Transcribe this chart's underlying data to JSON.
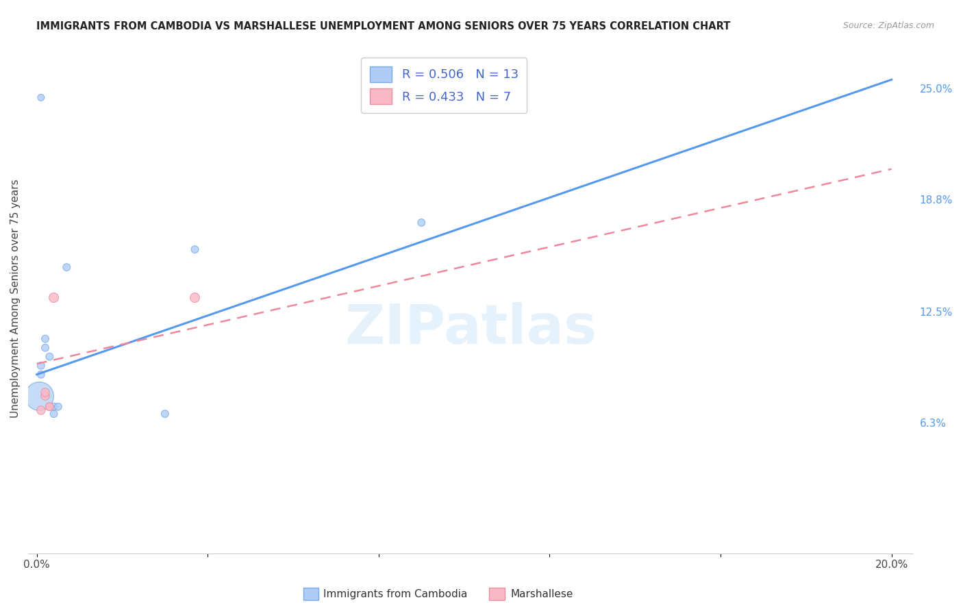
{
  "title": "IMMIGRANTS FROM CAMBODIA VS MARSHALLESE UNEMPLOYMENT AMONG SENIORS OVER 75 YEARS CORRELATION CHART",
  "source": "Source: ZipAtlas.com",
  "ylabel": "Unemployment Among Seniors over 75 years",
  "y_tick_labels_right": [
    "6.3%",
    "12.5%",
    "18.8%",
    "25.0%"
  ],
  "y_ticks_right": [
    0.063,
    0.125,
    0.188,
    0.25
  ],
  "xlim": [
    -0.002,
    0.205
  ],
  "ylim": [
    -0.01,
    0.275
  ],
  "R_cambodia": 0.506,
  "N_cambodia": 13,
  "R_marshallese": 0.433,
  "N_marshallese": 7,
  "cambodia_color": "#aeccf5",
  "cambodia_edge": "#7aaae8",
  "marshallese_color": "#f9b8c5",
  "marshallese_edge": "#e890a0",
  "trend_cambodia_color": "#5599ee",
  "trend_marshallese_color": "#ee8899",
  "trend_cambodia_x0": 0.0,
  "trend_cambodia_y0": 0.09,
  "trend_cambodia_x1": 0.2,
  "trend_cambodia_y1": 0.255,
  "trend_marshallese_x0": 0.0,
  "trend_marshallese_y0": 0.096,
  "trend_marshallese_x1": 0.2,
  "trend_marshallese_y1": 0.205,
  "watermark": "ZIPatlas",
  "background_color": "#ffffff",
  "grid_color": "#dddddd",
  "scatter_cambodia_x": [
    0.001,
    0.001,
    0.002,
    0.002,
    0.003,
    0.004,
    0.004,
    0.005,
    0.007,
    0.03,
    0.037,
    0.09,
    0.001
  ],
  "scatter_cambodia_y": [
    0.095,
    0.09,
    0.11,
    0.105,
    0.1,
    0.068,
    0.072,
    0.072,
    0.15,
    0.068,
    0.16,
    0.175,
    0.245
  ],
  "scatter_cambodia_size": [
    60,
    60,
    60,
    60,
    60,
    60,
    60,
    60,
    60,
    60,
    60,
    60,
    50
  ],
  "scatter_cambodia_big_x": [
    0.0005
  ],
  "scatter_cambodia_big_y": [
    0.078
  ],
  "scatter_cambodia_big_size": [
    900
  ],
  "scatter_marshallese_x": [
    0.001,
    0.002,
    0.002,
    0.003,
    0.003,
    0.004,
    0.037
  ],
  "scatter_marshallese_y": [
    0.07,
    0.078,
    0.08,
    0.072,
    0.072,
    0.133,
    0.133
  ],
  "scatter_marshallese_size": [
    80,
    80,
    80,
    70,
    70,
    100,
    100
  ],
  "legend_label_cambodia": "Immigrants from Cambodia",
  "legend_label_marshallese": "Marshallese"
}
